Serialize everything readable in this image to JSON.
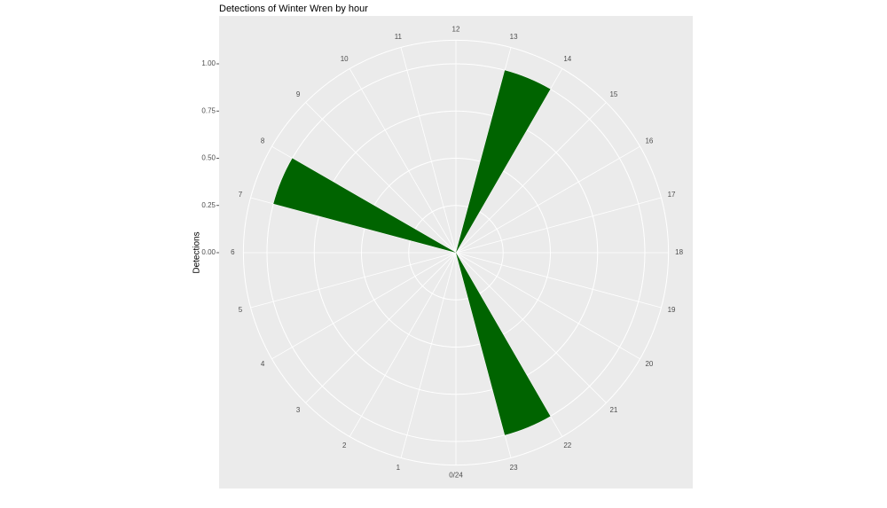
{
  "chart_data": {
    "type": "polar-bar",
    "title": "Detections of Winter Wren by hour",
    "y_label": "Detections",
    "x": [
      7,
      13,
      22
    ],
    "bar_width": 1,
    "series": [
      {
        "name": "Detections",
        "color": "#006400",
        "values": [
          1,
          1,
          1
        ]
      }
    ],
    "xlim": [
      0,
      24
    ],
    "xticks": [
      {
        "value": 0,
        "label": "0/24"
      },
      1,
      2,
      3,
      4,
      5,
      6,
      7,
      8,
      9,
      10,
      11,
      12,
      13,
      14,
      15,
      16,
      17,
      18,
      19,
      20,
      21,
      22,
      23
    ],
    "ylim": [
      0,
      1.125
    ],
    "yticks": [
      {
        "value": 0,
        "label": "0.00"
      },
      {
        "value": 0.25,
        "label": "0.25"
      },
      {
        "value": 0.5,
        "label": "0.50"
      },
      {
        "value": 0.75,
        "label": "0.75"
      },
      {
        "value": 1,
        "label": "1.00"
      }
    ],
    "grid": true,
    "background": "#EBEBEB"
  }
}
